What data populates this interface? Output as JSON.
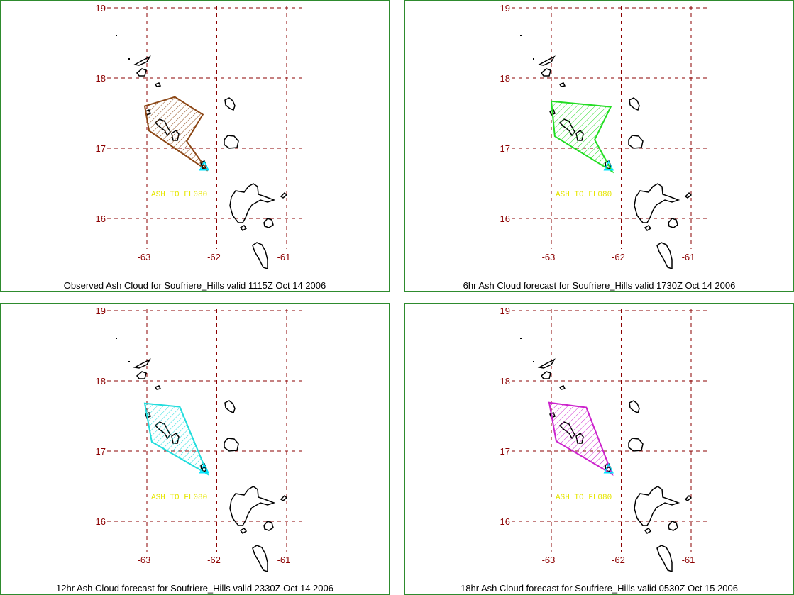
{
  "panels": [
    {
      "caption": "Observed Ash Cloud for Soufriere_Hills valid 1115Z Oct 14 2006",
      "cloud_color": "#8b4513",
      "ash_label": "ASH TO FL080",
      "cloud_polygon": [
        [
          -63.03,
          17.6
        ],
        [
          -62.6,
          17.73
        ],
        [
          -62.2,
          17.48
        ],
        [
          -62.43,
          17.1
        ],
        [
          -62.13,
          16.68
        ],
        [
          -62.97,
          17.25
        ]
      ]
    },
    {
      "caption": "6hr Ash Cloud forecast for Soufriere_Hills valid 1730Z Oct 14 2006",
      "cloud_color": "#22dd22",
      "ash_label": "ASH TO FL080",
      "cloud_polygon": [
        [
          -63.0,
          17.67
        ],
        [
          -62.15,
          17.59
        ],
        [
          -62.38,
          17.12
        ],
        [
          -62.13,
          16.67
        ],
        [
          -62.95,
          17.17
        ]
      ]
    },
    {
      "caption": "12hr Ash Cloud forecast for Soufriere_Hills valid 2330Z Oct 14 2006",
      "cloud_color": "#22dddd",
      "ash_label": "ASH TO FL080",
      "cloud_polygon": [
        [
          -63.03,
          17.68
        ],
        [
          -62.53,
          17.63
        ],
        [
          -62.13,
          16.67
        ],
        [
          -62.93,
          17.13
        ]
      ]
    },
    {
      "caption": "18hr Ash Cloud forecast for Soufriere_Hills valid 0530Z Oct 15 2006",
      "cloud_color": "#cc22cc",
      "ash_label": "ASH TO FL080",
      "cloud_polygon": [
        [
          -63.03,
          17.69
        ],
        [
          -62.5,
          17.62
        ],
        [
          -62.13,
          16.67
        ],
        [
          -62.93,
          17.14
        ]
      ]
    }
  ],
  "axes": {
    "lat_ticks": [
      "19",
      "18",
      "17",
      "16"
    ],
    "lon_ticks": [
      "-63",
      "-62",
      "-61"
    ],
    "lat_values": [
      19,
      18,
      17,
      16
    ],
    "lon_values": [
      -63,
      -62,
      -61
    ],
    "grid_color": "#8b0000",
    "tick_color": "#8b0000"
  },
  "volcano": {
    "name": "Soufriere_Hills",
    "lon": -62.18,
    "lat": 16.72,
    "marker_color": "#00e5ff"
  }
}
